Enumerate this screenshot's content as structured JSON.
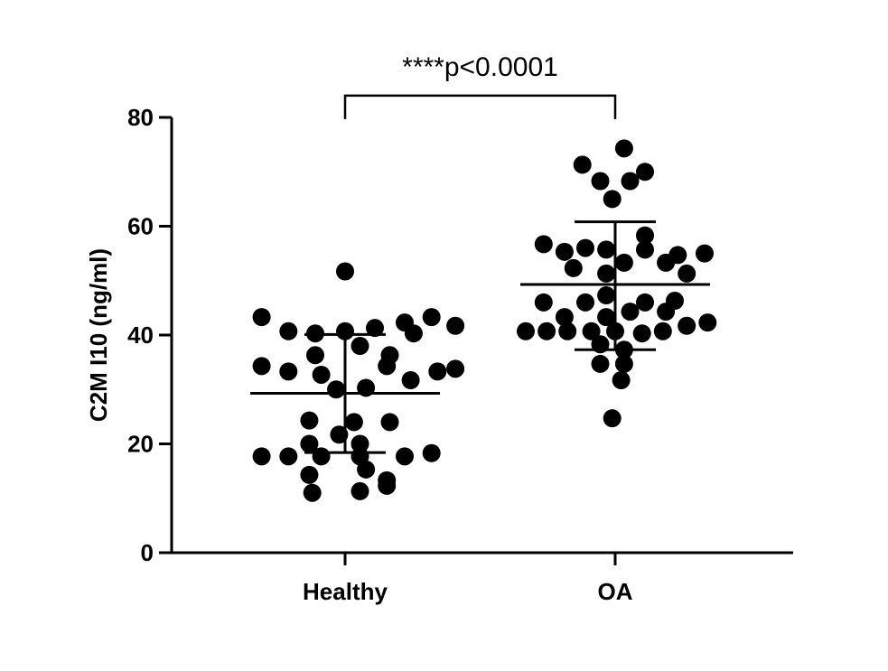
{
  "chart_data": {
    "type": "scatter",
    "ylabel": "C2M I10 (ng/ml)",
    "xlabel": "",
    "ylim": [
      0,
      80
    ],
    "yticks": [
      0,
      20,
      40,
      60,
      80
    ],
    "categories": [
      "Healthy",
      "OA"
    ],
    "grid": false,
    "marker_color": "#000000",
    "series": [
      {
        "category": "Healthy",
        "mean": 29.3,
        "sd_upper": 40.1,
        "sd_lower": 18.4,
        "points": [
          {
            "x": 0,
            "y": 51.7
          },
          {
            "x": -0.28,
            "y": 43.3
          },
          {
            "x": -0.19,
            "y": 40.7
          },
          {
            "x": -0.1,
            "y": 40.3
          },
          {
            "x": 0.0,
            "y": 40.7
          },
          {
            "x": 0.1,
            "y": 41.3
          },
          {
            "x": 0.2,
            "y": 42.3
          },
          {
            "x": 0.29,
            "y": 43.3
          },
          {
            "x": 0.37,
            "y": 41.7
          },
          {
            "x": 0.23,
            "y": 40.3
          },
          {
            "x": 0.05,
            "y": 38.0
          },
          {
            "x": -0.1,
            "y": 36.3
          },
          {
            "x": 0.15,
            "y": 36.3
          },
          {
            "x": -0.28,
            "y": 34.3
          },
          {
            "x": -0.19,
            "y": 33.3
          },
          {
            "x": -0.08,
            "y": 32.7
          },
          {
            "x": 0.14,
            "y": 34.3
          },
          {
            "x": 0.22,
            "y": 31.7
          },
          {
            "x": 0.31,
            "y": 33.3
          },
          {
            "x": 0.37,
            "y": 33.8
          },
          {
            "x": -0.03,
            "y": 30.0
          },
          {
            "x": 0.07,
            "y": 30.3
          },
          {
            "x": -0.12,
            "y": 24.3
          },
          {
            "x": 0.03,
            "y": 24.0
          },
          {
            "x": 0.15,
            "y": 24.0
          },
          {
            "x": -0.02,
            "y": 21.7
          },
          {
            "x": -0.12,
            "y": 20.0
          },
          {
            "x": 0.05,
            "y": 20.0
          },
          {
            "x": -0.28,
            "y": 17.7
          },
          {
            "x": -0.19,
            "y": 17.7
          },
          {
            "x": -0.08,
            "y": 17.7
          },
          {
            "x": 0.05,
            "y": 17.7
          },
          {
            "x": 0.2,
            "y": 17.7
          },
          {
            "x": 0.29,
            "y": 18.3
          },
          {
            "x": 0.07,
            "y": 15.3
          },
          {
            "x": -0.12,
            "y": 14.3
          },
          {
            "x": 0.14,
            "y": 13.3
          },
          {
            "x": -0.11,
            "y": 11.0
          },
          {
            "x": 0.05,
            "y": 11.3
          },
          {
            "x": 0.14,
            "y": 12.3
          }
        ]
      },
      {
        "category": "OA",
        "mean": 49.3,
        "sd_upper": 60.8,
        "sd_lower": 37.3,
        "points": [
          {
            "x": 0.03,
            "y": 74.3
          },
          {
            "x": -0.11,
            "y": 71.3
          },
          {
            "x": -0.05,
            "y": 68.3
          },
          {
            "x": 0.05,
            "y": 68.3
          },
          {
            "x": 0.1,
            "y": 70.0
          },
          {
            "x": -0.01,
            "y": 65.0
          },
          {
            "x": 0.1,
            "y": 58.3
          },
          {
            "x": -0.24,
            "y": 56.7
          },
          {
            "x": -0.17,
            "y": 55.3
          },
          {
            "x": -0.1,
            "y": 56.0
          },
          {
            "x": -0.03,
            "y": 55.7
          },
          {
            "x": 0.1,
            "y": 55.7
          },
          {
            "x": 0.21,
            "y": 54.7
          },
          {
            "x": 0.3,
            "y": 55.0
          },
          {
            "x": -0.14,
            "y": 52.3
          },
          {
            "x": -0.03,
            "y": 51.3
          },
          {
            "x": 0.03,
            "y": 53.3
          },
          {
            "x": 0.17,
            "y": 53.3
          },
          {
            "x": 0.24,
            "y": 51.3
          },
          {
            "x": -0.24,
            "y": 46.0
          },
          {
            "x": -0.1,
            "y": 46.0
          },
          {
            "x": -0.03,
            "y": 47.3
          },
          {
            "x": 0.1,
            "y": 46.0
          },
          {
            "x": 0.2,
            "y": 46.3
          },
          {
            "x": -0.17,
            "y": 43.3
          },
          {
            "x": -0.03,
            "y": 43.3
          },
          {
            "x": 0.05,
            "y": 44.3
          },
          {
            "x": 0.17,
            "y": 44.3
          },
          {
            "x": 0.31,
            "y": 42.3
          },
          {
            "x": -0.3,
            "y": 40.7
          },
          {
            "x": -0.23,
            "y": 40.7
          },
          {
            "x": -0.16,
            "y": 40.7
          },
          {
            "x": -0.08,
            "y": 40.7
          },
          {
            "x": 0.0,
            "y": 40.7
          },
          {
            "x": 0.09,
            "y": 40.3
          },
          {
            "x": 0.16,
            "y": 40.7
          },
          {
            "x": 0.24,
            "y": 41.7
          },
          {
            "x": -0.05,
            "y": 38.3
          },
          {
            "x": 0.03,
            "y": 37.3
          },
          {
            "x": -0.05,
            "y": 34.7
          },
          {
            "x": 0.03,
            "y": 34.7
          },
          {
            "x": 0.02,
            "y": 31.7
          },
          {
            "x": -0.01,
            "y": 24.7
          }
        ]
      }
    ],
    "annotations": [
      {
        "text": "****p<0.0001",
        "between": [
          "Healthy",
          "OA"
        ],
        "bracket_y": 84
      }
    ]
  }
}
